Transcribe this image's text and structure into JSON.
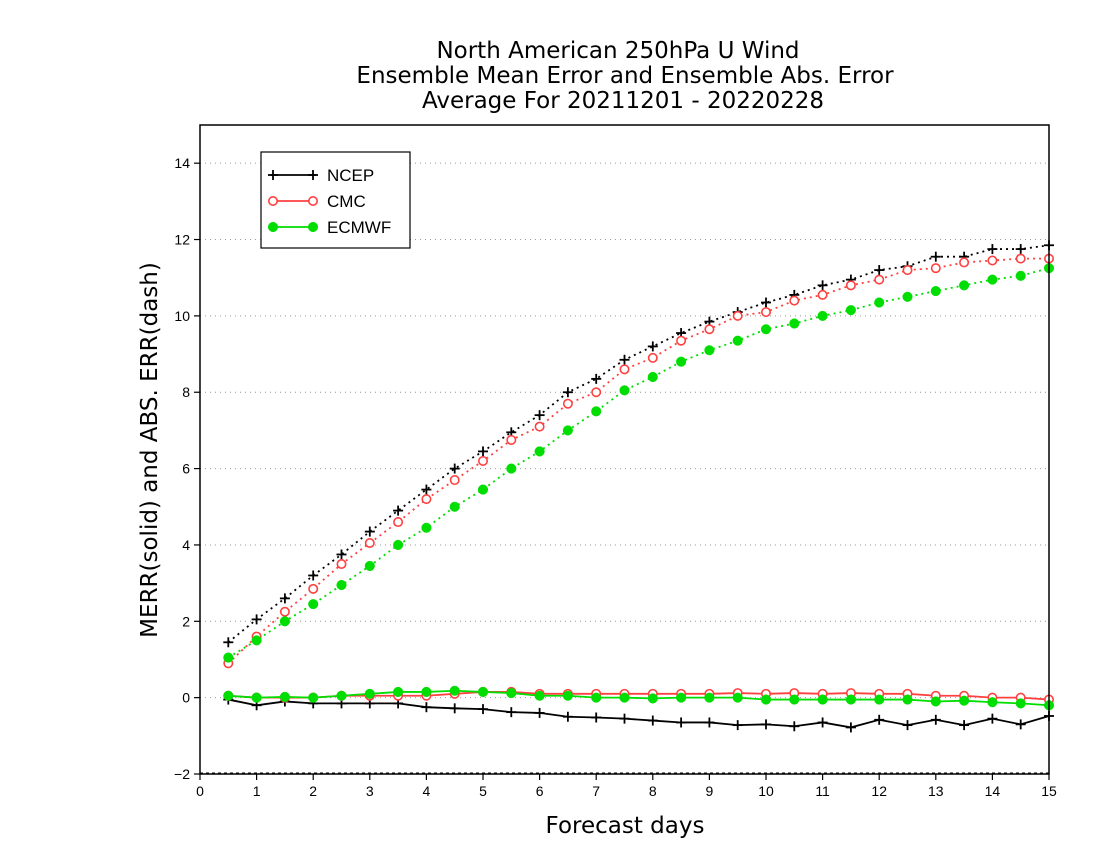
{
  "chart_data": {
    "type": "line",
    "title": [
      "North American 250hPa U Wind",
      "Ensemble Mean Error and Ensemble Abs. Error",
      "Average For 20211201 - 20220228"
    ],
    "xlabel": "Forecast days",
    "ylabel": "MERR(solid) and ABS. ERR(dash)",
    "xlim": [
      0,
      15
    ],
    "ylim": [
      -2,
      15
    ],
    "xticks": [
      0,
      1,
      2,
      3,
      4,
      5,
      6,
      7,
      8,
      9,
      10,
      11,
      12,
      13,
      14,
      15
    ],
    "yticks": [
      -2,
      0,
      2,
      4,
      6,
      8,
      10,
      12,
      14
    ],
    "grid": "horizontal dotted",
    "legend_position": "top-left",
    "x": [
      0.5,
      1.0,
      1.5,
      2.0,
      2.5,
      3.0,
      3.5,
      4.0,
      4.5,
      5.0,
      5.5,
      6.0,
      6.5,
      7.0,
      7.5,
      8.0,
      8.5,
      9.0,
      9.5,
      10.0,
      10.5,
      11.0,
      11.5,
      12.0,
      12.5,
      13.0,
      13.5,
      14.0,
      14.5,
      15.0
    ],
    "series": [
      {
        "name": "NCEP",
        "color": "#000000",
        "marker": "plus",
        "abs_error": [
          1.45,
          2.05,
          2.6,
          3.2,
          3.75,
          4.35,
          4.9,
          5.45,
          6.0,
          6.45,
          6.95,
          7.4,
          8.0,
          8.35,
          8.85,
          9.2,
          9.55,
          9.85,
          10.1,
          10.35,
          10.55,
          10.8,
          10.95,
          11.2,
          11.3,
          11.55,
          11.55,
          11.75,
          11.75,
          11.85
        ],
        "mean_error": [
          -0.05,
          -0.2,
          -0.1,
          -0.15,
          -0.15,
          -0.15,
          -0.15,
          -0.25,
          -0.28,
          -0.3,
          -0.38,
          -0.4,
          -0.5,
          -0.52,
          -0.55,
          -0.6,
          -0.65,
          -0.65,
          -0.72,
          -0.7,
          -0.75,
          -0.65,
          -0.78,
          -0.58,
          -0.72,
          -0.58,
          -0.72,
          -0.55,
          -0.7,
          -0.48
        ]
      },
      {
        "name": "CMC",
        "color": "#ff4040",
        "marker": "open-circle",
        "abs_error": [
          0.9,
          1.6,
          2.25,
          2.85,
          3.5,
          4.05,
          4.6,
          5.2,
          5.7,
          6.2,
          6.75,
          7.1,
          7.7,
          8.0,
          8.6,
          8.9,
          9.35,
          9.65,
          10.0,
          10.1,
          10.4,
          10.55,
          10.8,
          10.95,
          11.2,
          11.25,
          11.4,
          11.45,
          11.5,
          11.5
        ],
        "mean_error": [
          0.05,
          0.0,
          0.0,
          0.0,
          0.05,
          0.05,
          0.05,
          0.05,
          0.1,
          0.15,
          0.15,
          0.1,
          0.1,
          0.1,
          0.1,
          0.1,
          0.1,
          0.1,
          0.12,
          0.1,
          0.12,
          0.1,
          0.12,
          0.1,
          0.1,
          0.05,
          0.05,
          0.0,
          0.0,
          -0.05
        ]
      },
      {
        "name": "ECMWF",
        "color": "#00dd00",
        "marker": "filled-circle",
        "abs_error": [
          1.05,
          1.5,
          2.0,
          2.45,
          2.95,
          3.45,
          4.0,
          4.45,
          5.0,
          5.45,
          6.0,
          6.45,
          7.0,
          7.5,
          8.05,
          8.4,
          8.8,
          9.1,
          9.35,
          9.65,
          9.8,
          10.0,
          10.15,
          10.35,
          10.5,
          10.65,
          10.8,
          10.95,
          11.05,
          11.25
        ],
        "mean_error": [
          0.05,
          0.0,
          0.02,
          0.0,
          0.05,
          0.1,
          0.15,
          0.15,
          0.18,
          0.15,
          0.12,
          0.05,
          0.05,
          0.0,
          0.0,
          -0.02,
          0.0,
          0.0,
          0.0,
          -0.05,
          -0.05,
          -0.05,
          -0.05,
          -0.05,
          -0.05,
          -0.1,
          -0.08,
          -0.12,
          -0.15,
          -0.2
        ]
      }
    ]
  }
}
